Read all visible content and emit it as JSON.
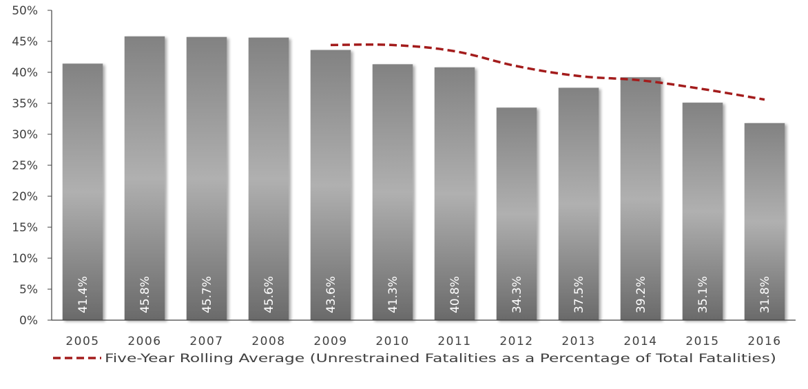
{
  "chart_data": {
    "type": "bar",
    "categories": [
      "2005",
      "2006",
      "2007",
      "2008",
      "2009",
      "2010",
      "2011",
      "2012",
      "2013",
      "2014",
      "2015",
      "2016"
    ],
    "series": [
      {
        "type": "bar",
        "values": [
          41.4,
          45.8,
          45.7,
          45.6,
          43.6,
          41.3,
          40.8,
          34.3,
          37.5,
          39.2,
          35.1,
          31.8
        ],
        "data_labels": [
          "41.4%",
          "45.8%",
          "45.7%",
          "45.6%",
          "43.6%",
          "41.3%",
          "40.8%",
          "34.3%",
          "37.5%",
          "39.2%",
          "35.1%",
          "31.8%"
        ]
      },
      {
        "type": "line",
        "name": "Five-Year Rolling Average (Unrestrained Fatalities as a Percentage of Total Fatalities)",
        "style": "dashed",
        "color": "#a31c1c",
        "values": [
          null,
          null,
          null,
          null,
          44.4,
          44.4,
          43.4,
          41.0,
          39.4,
          38.7,
          37.3,
          35.6
        ]
      }
    ],
    "ylim": [
      0,
      50
    ],
    "y_ticks": [
      "0%",
      "5%",
      "10%",
      "15%",
      "20%",
      "25%",
      "30%",
      "35%",
      "40%",
      "45%",
      "50%"
    ],
    "grid": false,
    "legend_position": "bottom",
    "bar_color": "#8c8c8c"
  }
}
